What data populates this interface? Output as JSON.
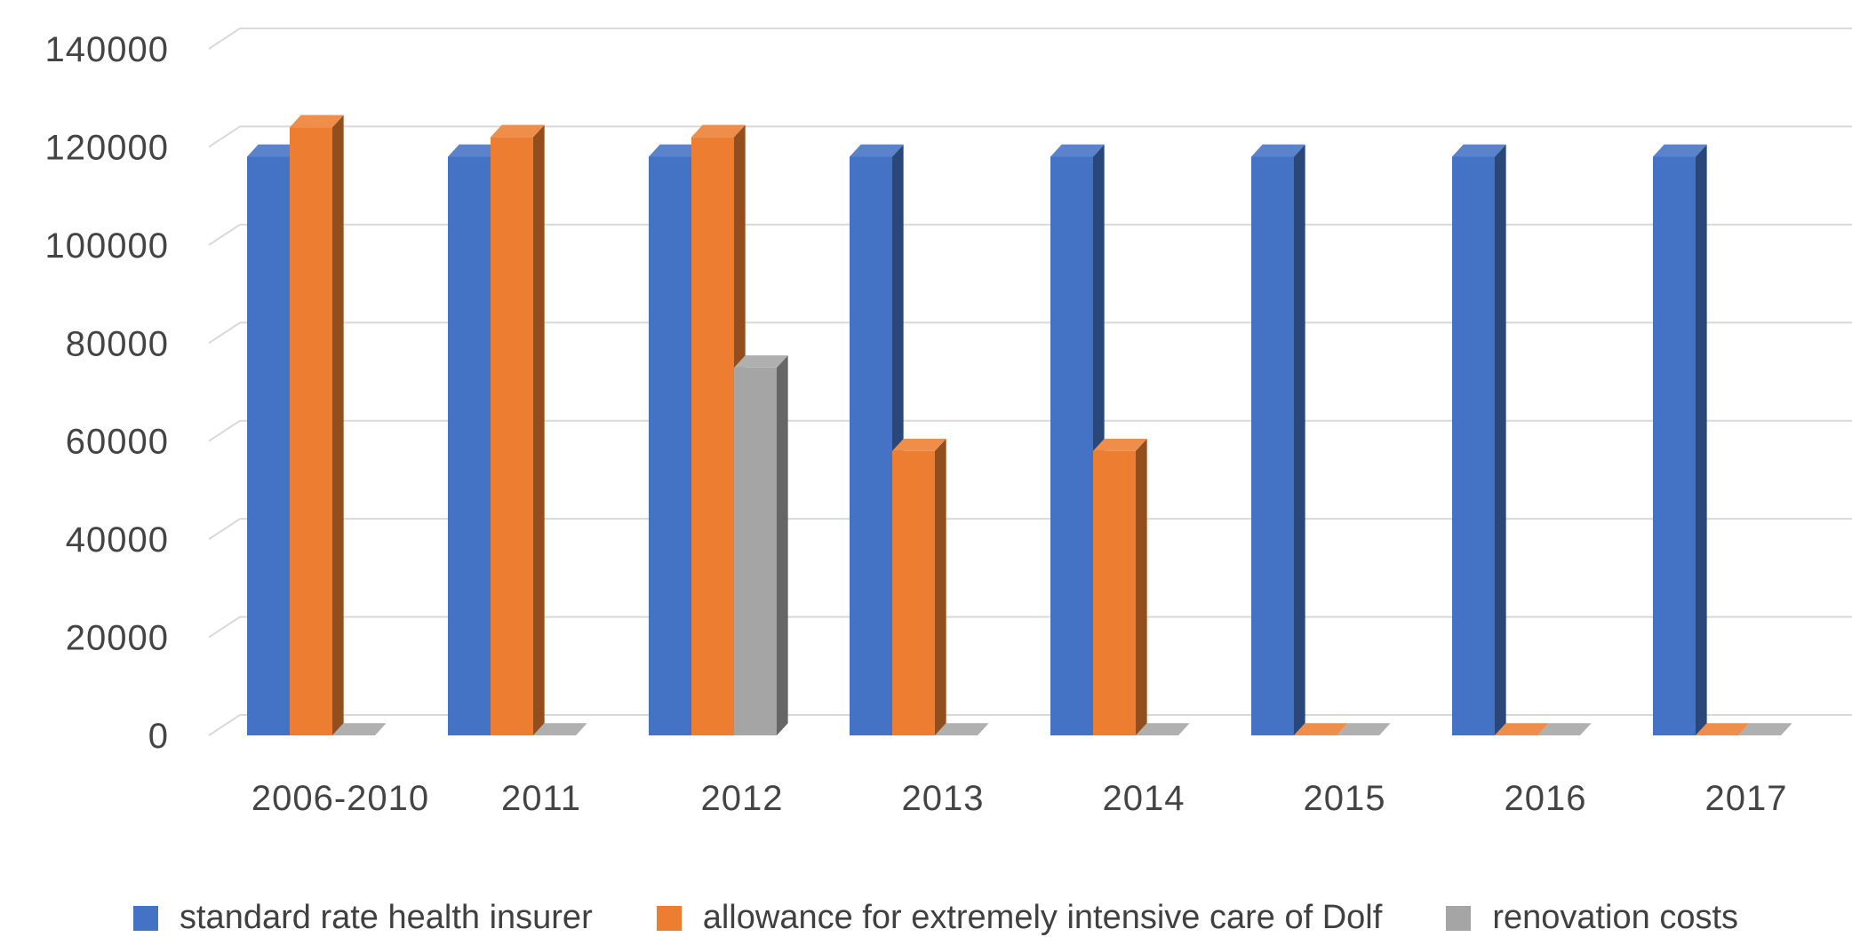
{
  "chart_data": {
    "type": "bar",
    "style": "3d-clustered-column",
    "categories": [
      "2006-2010",
      "2011",
      "2012",
      "2013",
      "2014",
      "2015",
      "2016",
      "2017"
    ],
    "series": [
      {
        "name": "standard rate health insurer",
        "color": "#4472c4",
        "values": [
          118000,
          118000,
          118000,
          118000,
          118000,
          118000,
          118000,
          118000
        ]
      },
      {
        "name": "allowance for extremely intensive care of Dolf",
        "color": "#ed7d31",
        "values": [
          124000,
          122000,
          122000,
          58000,
          58000,
          0,
          0,
          0
        ]
      },
      {
        "name": "renovation costs",
        "color": "#a5a5a5",
        "values": [
          0,
          0,
          75000,
          0,
          0,
          0,
          0,
          0
        ]
      }
    ],
    "y_ticks": [
      "0",
      "20000",
      "40000",
      "60000",
      "80000",
      "100000",
      "120000",
      "140000"
    ],
    "ylim": [
      0,
      140000
    ],
    "grid": true,
    "legend_position": "bottom",
    "title": "",
    "xlabel": "",
    "ylabel": ""
  }
}
